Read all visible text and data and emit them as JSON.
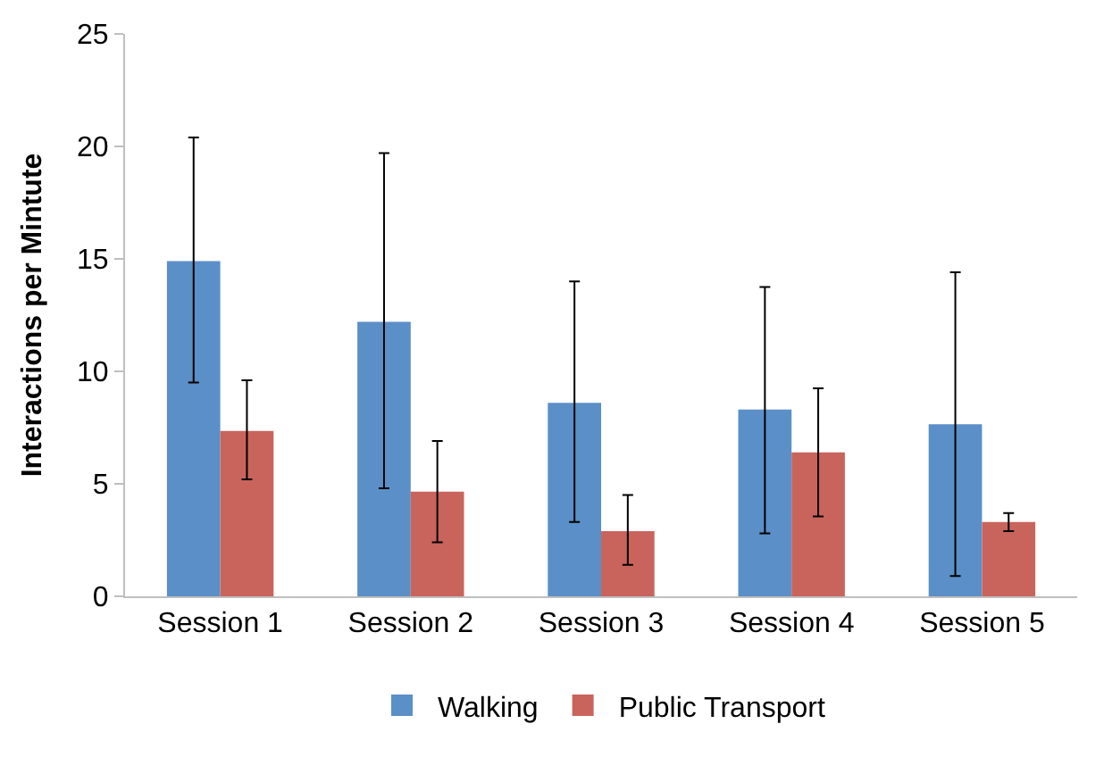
{
  "chart_data": {
    "type": "bar",
    "ylabel": "Interactions per Mintute",
    "categories": [
      "Session 1",
      "Session 2",
      "Session 3",
      "Session 4",
      "Session 5"
    ],
    "series": [
      {
        "name": "Walking",
        "color": "#5b8fc7",
        "values": [
          14.9,
          12.2,
          8.6,
          8.3,
          7.65
        ],
        "errors": [
          [
            9.5,
            20.4
          ],
          [
            4.8,
            19.7
          ],
          [
            3.3,
            14.0
          ],
          [
            2.8,
            13.75
          ],
          [
            0.9,
            14.4
          ]
        ]
      },
      {
        "name": "Public Transport",
        "color": "#c9645c",
        "values": [
          7.35,
          4.65,
          2.9,
          6.4,
          3.3
        ],
        "errors": [
          [
            5.2,
            9.6
          ],
          [
            2.4,
            6.9
          ],
          [
            1.4,
            4.5
          ],
          [
            3.55,
            9.25
          ],
          [
            2.9,
            3.7
          ]
        ]
      }
    ],
    "ylim": [
      0,
      25
    ],
    "yticks": [
      0,
      5,
      10,
      15,
      20,
      25
    ],
    "grid": false,
    "legend": "bottom"
  }
}
